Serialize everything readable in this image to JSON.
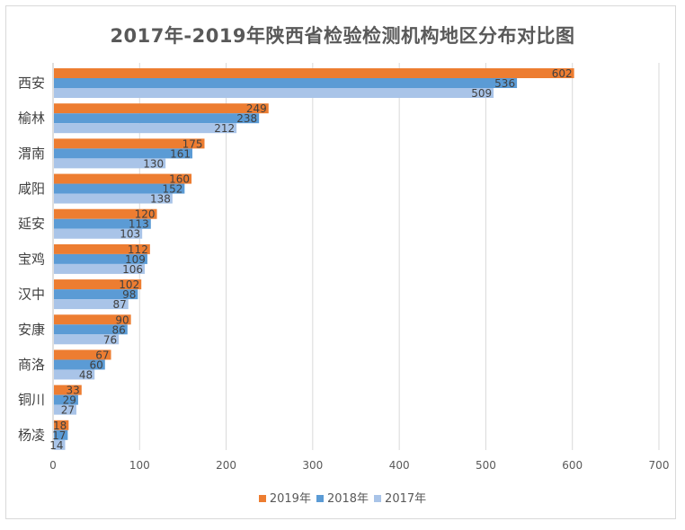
{
  "chart_data": {
    "type": "bar",
    "orientation": "horizontal",
    "title": "2017年-2019年陕西省检验检测机构地区分布对比图",
    "xlabel": "",
    "ylabel": "",
    "xlim": [
      0,
      700
    ],
    "x_ticks": [
      0,
      100,
      200,
      300,
      400,
      500,
      600,
      700
    ],
    "grid": true,
    "legend_position": "bottom",
    "categories": [
      "西安",
      "榆林",
      "渭南",
      "咸阳",
      "延安",
      "宝鸡",
      "汉中",
      "安康",
      "商洛",
      "铜川",
      "杨凌"
    ],
    "series": [
      {
        "name": "2019年",
        "color": "#ed7d31",
        "values": [
          602,
          249,
          175,
          160,
          120,
          112,
          102,
          90,
          67,
          33,
          18
        ]
      },
      {
        "name": "2018年",
        "color": "#5b9bd5",
        "values": [
          536,
          238,
          161,
          152,
          113,
          109,
          98,
          86,
          60,
          29,
          17
        ]
      },
      {
        "name": "2017年",
        "color": "#a9c4e8",
        "values": [
          509,
          212,
          130,
          138,
          103,
          106,
          87,
          76,
          48,
          27,
          14
        ]
      }
    ]
  }
}
